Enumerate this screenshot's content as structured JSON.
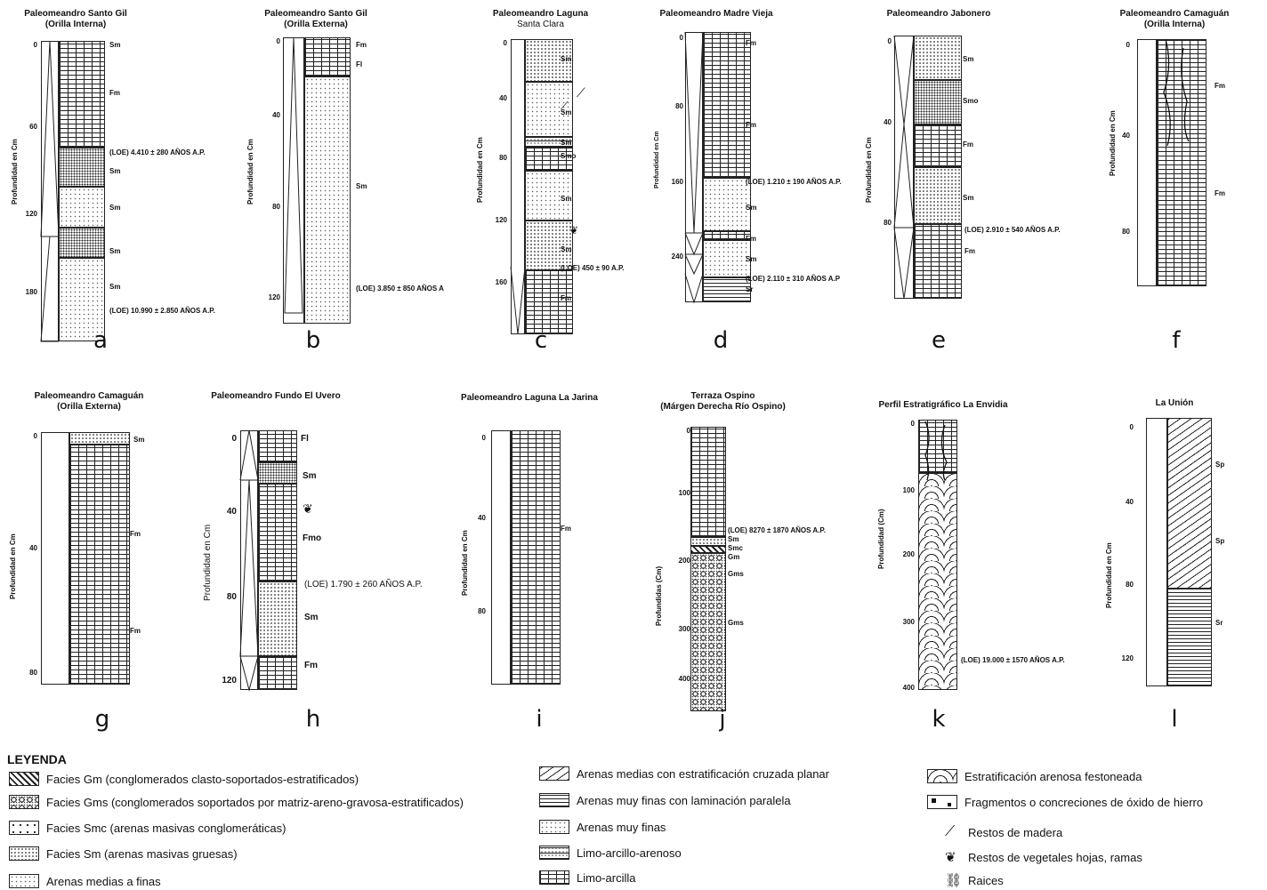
{
  "axis_label_cm": "Profundidad en Cm",
  "axis_label_j": "Profundidas (Cm)",
  "axis_label_k": "Profundidad (Cm)",
  "panels": {
    "a": {
      "letter": "a",
      "title1": "Paleomeandro Santo Gil",
      "title2": "(Orilla Interna)",
      "ticks": [
        "0",
        "60",
        "120",
        "180"
      ],
      "ann": [
        "Sm",
        "Fm",
        "(LOE) 4.410 ± 280 AÑOS A.P.",
        "Sm",
        "Sm",
        "Sm",
        "Sm",
        "(LOE) 10.990 ± 2.850 AÑOS A.P."
      ]
    },
    "b": {
      "letter": "b",
      "title1": "Paleomeandro Santo Gil",
      "title2": "(Orilla Externa)",
      "ticks": [
        "0",
        "40",
        "80",
        "120"
      ],
      "ann": [
        "Fm",
        "Fl",
        "Sm",
        "(LOE) 3.850 ± 850 AÑOS A"
      ]
    },
    "c": {
      "letter": "c",
      "title1": "Paleomeandro Laguna",
      "title2": "Santa Clara",
      "ticks": [
        "0",
        "40",
        "80",
        "120",
        "160"
      ],
      "ann": [
        "Sm",
        "Sm",
        "Sm",
        "Smo",
        "Sm",
        "Sm",
        "(LOE) 450 ± 90 A.P.",
        "Fm"
      ]
    },
    "d": {
      "letter": "d",
      "title1": "Paleomeandro Madre Vieja",
      "title2": "",
      "ticks": [
        "0",
        "80",
        "160",
        "240"
      ],
      "ann": [
        "Fm",
        "Fm",
        "(LOE) 1.210 ± 190 AÑOS A.P.",
        "Sm",
        "Fm",
        "Sm",
        "(LOE) 2.110 ± 310 AÑOS A.P",
        "Sr"
      ]
    },
    "e": {
      "letter": "e",
      "title1": "Paleomeandro Jabonero",
      "title2": "",
      "ticks": [
        "0",
        "40",
        "80"
      ],
      "ann": [
        "Sm",
        "Smo",
        "Fm",
        "Sm",
        "(LOE) 2.910 ± 540 AÑOS A.P.",
        "Fm"
      ]
    },
    "f": {
      "letter": "f",
      "title1": "Paleomeandro Camaguán",
      "title2": "(Orilla Interna)",
      "ticks": [
        "0",
        "40",
        "80"
      ],
      "ann": [
        "Fm",
        "Fm"
      ]
    },
    "g": {
      "letter": "g",
      "title1": "Paleomeandro Camaguán",
      "title2": "(Orilla Externa)",
      "ticks": [
        "0",
        "40",
        "80"
      ],
      "ann": [
        "Sm",
        "Fm",
        "Fm"
      ]
    },
    "h": {
      "letter": "h",
      "title1": "Paleomeandro Fundo El Uvero",
      "title2": "",
      "ticks": [
        "0",
        "40",
        "80",
        "120"
      ],
      "ann": [
        "Fl",
        "Sm",
        "Fmo",
        "(LOE) 1.790 ± 260 AÑOS A.P.",
        "Sm",
        "Fm"
      ]
    },
    "i": {
      "letter": "i",
      "title1": "Paleomeandro Laguna La Jarina",
      "title2": "",
      "ticks": [
        "0",
        "40",
        "80"
      ],
      "ann": [
        "Fm"
      ]
    },
    "j": {
      "letter": "j",
      "title1": "Terraza Ospino",
      "title2": "(Márgen Derecha Río Ospino)",
      "ticks": [
        "0",
        "100",
        "200",
        "300",
        "400"
      ],
      "ann": [
        "(LOE) 8270 ± 1870 AÑOS A.P.",
        "Sm",
        "Smc",
        "Gm",
        "Gms",
        "Gms"
      ]
    },
    "k": {
      "letter": "k",
      "title1": "Perfil Estratigráfico La Envidia",
      "title2": "",
      "ticks": [
        "0",
        "100",
        "200",
        "300",
        "400"
      ],
      "ann": [
        "(LOE) 19.000 ± 1570 AÑOS A.P."
      ]
    },
    "l": {
      "letter": "l",
      "title1": "La Unión",
      "title2": "",
      "ticks": [
        "0",
        "40",
        "80",
        "120"
      ],
      "ann": [
        "Sp",
        "Sp",
        "Sr"
      ]
    }
  },
  "legend": {
    "title": "LEYENDA",
    "col1": [
      "Facies Gm (conglomerados clasto-soportados-estratificados)",
      "Facies Gms (conglomerados soportados por matriz-areno-gravosa-estratificados)",
      "Facies Smc (arenas masivas conglomeráticas)",
      "Facies Sm (arenas masivas gruesas)",
      "Arenas medias a finas"
    ],
    "col2": [
      "Arenas medias con estratificación cruzada planar",
      "Arenas muy finas con laminación paralela",
      "Arenas muy finas",
      "Limo-arcillo-arenoso",
      "Limo-arcilla"
    ],
    "col3": [
      "Estratificación arenosa festoneada",
      "Fragmentos o concreciones de óxido de hierro",
      "Restos de madera",
      "Restos de vegetales hojas, ramas",
      "Raices"
    ]
  }
}
